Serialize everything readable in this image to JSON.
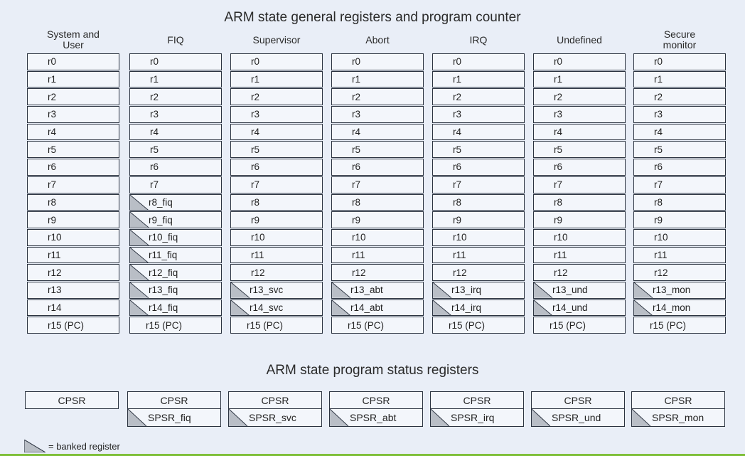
{
  "title": "ARM state general registers and program counter",
  "psr_title": "ARM state program status registers",
  "legend": "= banked register",
  "modes": [
    {
      "name": "System and\nUser",
      "banked_from": 99,
      "suffix": "",
      "spsr": ""
    },
    {
      "name": "FIQ",
      "banked_from": 8,
      "suffix": "_fiq",
      "spsr": "SPSR_fiq"
    },
    {
      "name": "Supervisor",
      "banked_from": 13,
      "suffix": "_svc",
      "spsr": "SPSR_svc"
    },
    {
      "name": "Abort",
      "banked_from": 13,
      "suffix": "_abt",
      "spsr": "SPSR_abt"
    },
    {
      "name": "IRQ",
      "banked_from": 13,
      "suffix": "_irq",
      "spsr": "SPSR_irq"
    },
    {
      "name": "Undefined",
      "banked_from": 13,
      "suffix": "_und",
      "spsr": "SPSR_und"
    },
    {
      "name": "Secure\nmonitor",
      "banked_from": 13,
      "suffix": "_mon",
      "spsr": "SPSR_mon"
    }
  ],
  "cpsr_label": "CPSR",
  "registers": [
    "r0",
    "r1",
    "r2",
    "r3",
    "r4",
    "r5",
    "r6",
    "r7",
    "r8",
    "r9",
    "r10",
    "r11",
    "r12",
    "r13",
    "r14",
    "r15"
  ],
  "pc_label": "r15 (PC)",
  "colors": {
    "banked_fill": "#b9bec6",
    "border": "#2b3340"
  }
}
